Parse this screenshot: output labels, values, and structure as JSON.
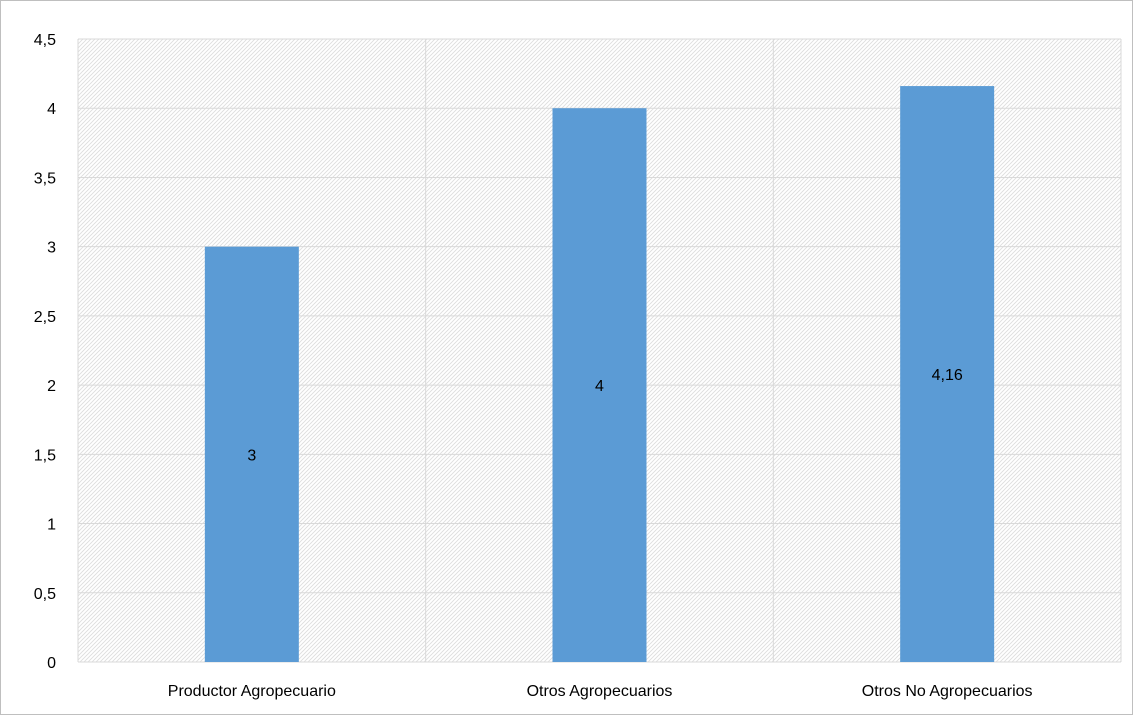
{
  "chart_data": {
    "type": "bar",
    "title": "",
    "xlabel": "",
    "ylabel": "",
    "categories": [
      "Productor Agropecuario",
      "Otros Agropecuarios",
      "Otros No Agropecuarios"
    ],
    "values": [
      3,
      4,
      4.16
    ],
    "data_labels": [
      "3",
      "4",
      "4,16"
    ],
    "ylim": [
      0,
      4.5
    ],
    "yticks": [
      0,
      0.5,
      1,
      1.5,
      2,
      2.5,
      3,
      3.5,
      4,
      4.5
    ],
    "ytick_labels": [
      "0",
      "0,5",
      "1",
      "1,5",
      "2",
      "2,5",
      "3",
      "3,5",
      "4",
      "4,5"
    ],
    "grid": true,
    "legend": "none",
    "bar_color": "#5b9bd5",
    "grid_color": "#d9d9d9"
  }
}
